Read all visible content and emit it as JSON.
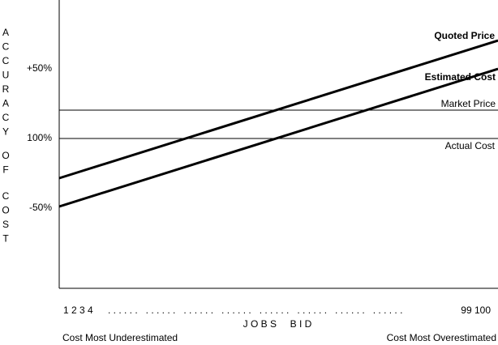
{
  "y_axis": {
    "title_words": [
      "ACCURACY",
      "OF",
      "COST"
    ],
    "labels": [
      "+50%",
      "100%",
      "-50%"
    ]
  },
  "lines": [
    {
      "label": "Quoted Price"
    },
    {
      "label": "Estimated Cost"
    },
    {
      "label": "Market Price"
    },
    {
      "label": "Actual Cost"
    }
  ],
  "x_axis": {
    "start_label": "1 2 3 4",
    "dots": ". . . . . .   . . . . . .   . . . . . .   . . . . . .   . . . . . .   . . . . . .   . . . . . .   . . . . . .",
    "end_label": "99 100",
    "title": "J O B S     B I D",
    "left_note": "Cost Most Underestimated",
    "right_note": "Cost Most Overestimated"
  }
}
